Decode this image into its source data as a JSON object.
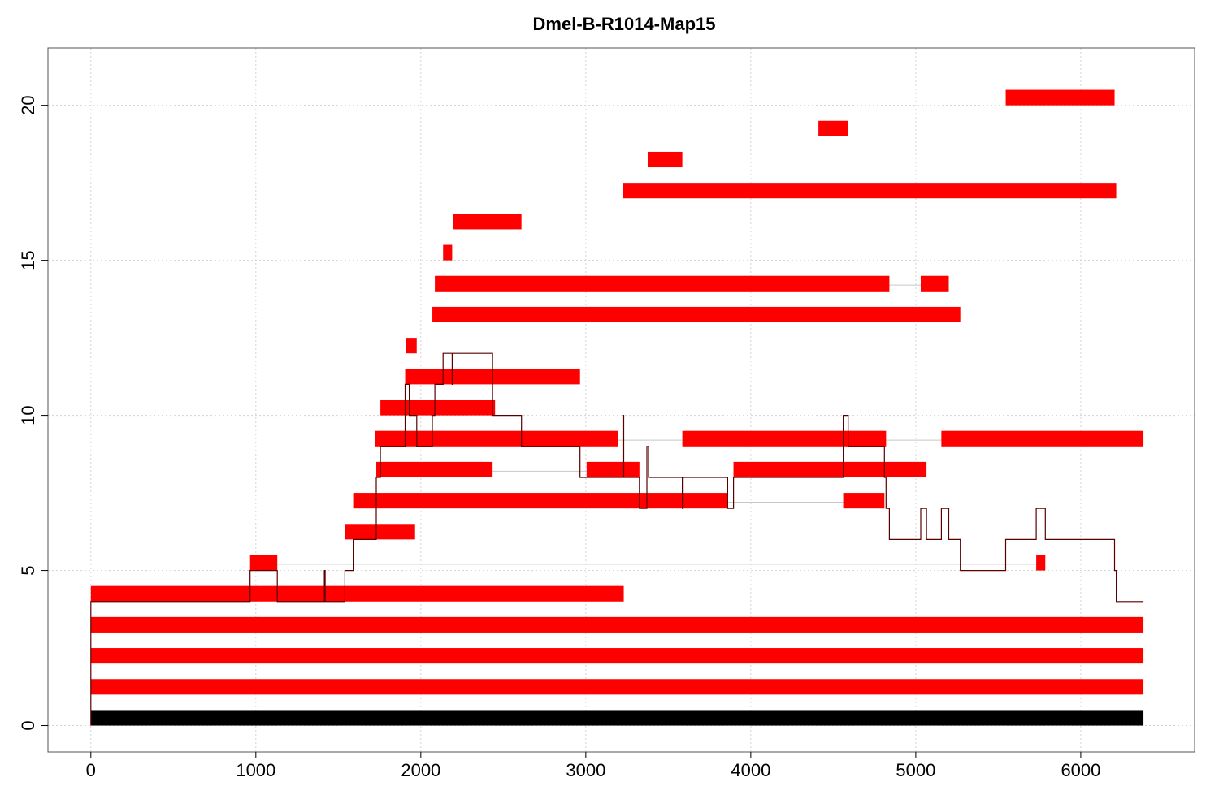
{
  "chart_data": {
    "type": "bar",
    "title": "Dmel-B-R1014-Map15",
    "xlabel": "",
    "ylabel": "",
    "xlim": [
      -260,
      6690
    ],
    "ylim": [
      -0.85,
      21.85
    ],
    "x_ticks": [
      0,
      1000,
      2000,
      3000,
      4000,
      5000,
      6000
    ],
    "y_ticks": [
      0,
      5,
      10,
      15,
      20
    ],
    "grid": true,
    "legend": "none",
    "colors": {
      "base": "#000000",
      "segment": "#ff0000",
      "coverage": "#5a0000",
      "link": "#c8c8c8",
      "grid": "#d3d3d3"
    },
    "base_bar": {
      "y": 0,
      "x": [
        0,
        6380
      ]
    },
    "segments": [
      {
        "y": 1,
        "x": [
          0,
          6380
        ]
      },
      {
        "y": 2,
        "x": [
          0,
          6380
        ]
      },
      {
        "y": 3,
        "x": [
          0,
          6380
        ]
      },
      {
        "y": 4,
        "x": [
          0,
          3230
        ]
      },
      {
        "y": 5,
        "x": [
          965,
          1130
        ]
      },
      {
        "y": 5,
        "x": [
          5730,
          5785
        ]
      },
      {
        "y": 6,
        "x": [
          1540,
          1965
        ]
      },
      {
        "y": 7,
        "x": [
          1590,
          3860
        ]
      },
      {
        "y": 7,
        "x": [
          4560,
          4810
        ]
      },
      {
        "y": 8,
        "x": [
          1730,
          2435
        ]
      },
      {
        "y": 8,
        "x": [
          3005,
          3325
        ]
      },
      {
        "y": 8,
        "x": [
          3895,
          5065
        ]
      },
      {
        "y": 9,
        "x": [
          1725,
          3195
        ]
      },
      {
        "y": 9,
        "x": [
          3585,
          4820
        ]
      },
      {
        "y": 9,
        "x": [
          5155,
          6380
        ]
      },
      {
        "y": 10,
        "x": [
          1755,
          2450
        ]
      },
      {
        "y": 11,
        "x": [
          1905,
          2965
        ]
      },
      {
        "y": 12,
        "x": [
          1910,
          1975
        ]
      },
      {
        "y": 13,
        "x": [
          2070,
          5270
        ]
      },
      {
        "y": 14,
        "x": [
          2085,
          4840
        ]
      },
      {
        "y": 14,
        "x": [
          5030,
          5200
        ]
      },
      {
        "y": 15,
        "x": [
          2135,
          2190
        ]
      },
      {
        "y": 16,
        "x": [
          2195,
          2610
        ]
      },
      {
        "y": 17,
        "x": [
          3225,
          6215
        ]
      },
      {
        "y": 18,
        "x": [
          3375,
          3585
        ]
      },
      {
        "y": 19,
        "x": [
          4410,
          4590
        ]
      },
      {
        "y": 20,
        "x": [
          5545,
          6205
        ]
      }
    ],
    "links": [
      {
        "y": 5.2,
        "x": [
          1130,
          5730
        ]
      },
      {
        "y": 7.2,
        "x": [
          3860,
          4560
        ]
      },
      {
        "y": 8.2,
        "x": [
          2435,
          3005
        ]
      },
      {
        "y": 9.2,
        "x": [
          3195,
          3585
        ]
      },
      {
        "y": 9.2,
        "x": [
          4820,
          5155
        ]
      },
      {
        "y": 14.2,
        "x": [
          4840,
          5030
        ]
      }
    ],
    "coverage": {
      "x": [
        0,
        0,
        965,
        965,
        1130,
        1130,
        1415,
        1415,
        1420,
        1420,
        1540,
        1540,
        1590,
        1590,
        1730,
        1730,
        1755,
        1755,
        1905,
        1905,
        1930,
        1930,
        1975,
        1975,
        2070,
        2070,
        2085,
        2085,
        2135,
        2135,
        2190,
        2190,
        2195,
        2195,
        2435,
        2435,
        2450,
        2450,
        2610,
        2610,
        2965,
        2965,
        3005,
        3005,
        3195,
        3195,
        3225,
        3225,
        3230,
        3230,
        3325,
        3325,
        3370,
        3370,
        3380,
        3380,
        3585,
        3585,
        3590,
        3590,
        3860,
        3860,
        3895,
        3895,
        4410,
        4410,
        4560,
        4560,
        4590,
        4590,
        4810,
        4810,
        4820,
        4820,
        4840,
        4840,
        5030,
        5030,
        5065,
        5065,
        5155,
        5155,
        5200,
        5200,
        5270,
        5270,
        5545,
        5545,
        5730,
        5730,
        5785,
        5785,
        6205,
        6205,
        6215,
        6215,
        6380
      ],
      "y": [
        0,
        4,
        4,
        5,
        5,
        4,
        4,
        5,
        5,
        4,
        4,
        5,
        5,
        6,
        6,
        8,
        8,
        9,
        9,
        11,
        11,
        10,
        10,
        9,
        9,
        10,
        10,
        11,
        11,
        12,
        12,
        11,
        11,
        12,
        12,
        10,
        10,
        10,
        10,
        9,
        9,
        8,
        8,
        8,
        8,
        8,
        8,
        10,
        10,
        8,
        8,
        7,
        7,
        9,
        9,
        8,
        8,
        7,
        7,
        8,
        8,
        7,
        7,
        8,
        8,
        8,
        8,
        10,
        10,
        9,
        9,
        8,
        8,
        7,
        7,
        6,
        6,
        7,
        7,
        6,
        6,
        7,
        7,
        6,
        6,
        5,
        5,
        6,
        6,
        7,
        7,
        6,
        6,
        5,
        5,
        4,
        4
      ]
    }
  }
}
